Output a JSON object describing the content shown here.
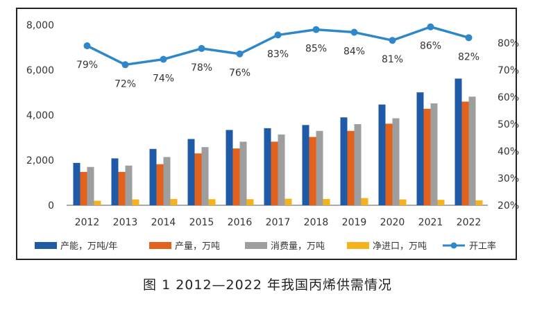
{
  "caption": "图 1  2012—2022 年我国丙烯供需情况",
  "chart_data": {
    "type": "bar",
    "categories": [
      "2012",
      "2013",
      "2014",
      "2015",
      "2016",
      "2017",
      "2018",
      "2019",
      "2020",
      "2021",
      "2022"
    ],
    "left_axis": {
      "ylim": [
        0,
        8000
      ],
      "ticks": [
        0,
        2000,
        4000,
        6000,
        8000
      ],
      "tick_labels": [
        "0",
        "2,000",
        "4,000",
        "6,000",
        "8,000"
      ]
    },
    "right_axis": {
      "ylim": [
        20,
        86.7
      ],
      "ticks": [
        20,
        30,
        40,
        50,
        60,
        70,
        80
      ],
      "tick_labels": [
        "20%",
        "30%",
        "40%",
        "50%",
        "60%",
        "70%",
        "80%"
      ]
    },
    "series": [
      {
        "name": "产能，万吨/年",
        "type": "bar",
        "axis": "left",
        "color": "#1f5aa6",
        "values": [
          1880,
          2080,
          2500,
          2940,
          3340,
          3420,
          3560,
          3900,
          4470,
          5010,
          5620
        ]
      },
      {
        "name": "产量，万吨",
        "type": "bar",
        "axis": "left",
        "color": "#e2611d",
        "values": [
          1480,
          1480,
          1820,
          2300,
          2520,
          2820,
          3030,
          3300,
          3620,
          4280,
          4600
        ]
      },
      {
        "name": "消费量，万吨",
        "type": "bar",
        "axis": "left",
        "color": "#9e9e9e",
        "values": [
          1700,
          1760,
          2140,
          2580,
          2820,
          3140,
          3300,
          3600,
          3860,
          4520,
          4820
        ]
      },
      {
        "name": "净进口，万吨",
        "type": "bar",
        "axis": "left",
        "color": "#f5b21c",
        "values": [
          200,
          260,
          280,
          270,
          270,
          290,
          280,
          320,
          260,
          240,
          220
        ]
      },
      {
        "name": "开工率",
        "type": "line",
        "axis": "right",
        "color": "#2e87c8",
        "values": [
          79,
          72,
          74,
          78,
          76,
          83,
          85,
          84,
          81,
          86,
          82
        ],
        "data_labels": [
          "79%",
          "72%",
          "74%",
          "78%",
          "76%",
          "83%",
          "85%",
          "84%",
          "81%",
          "86%",
          "82%"
        ]
      }
    ],
    "legend_position": "bottom",
    "grid": false
  }
}
